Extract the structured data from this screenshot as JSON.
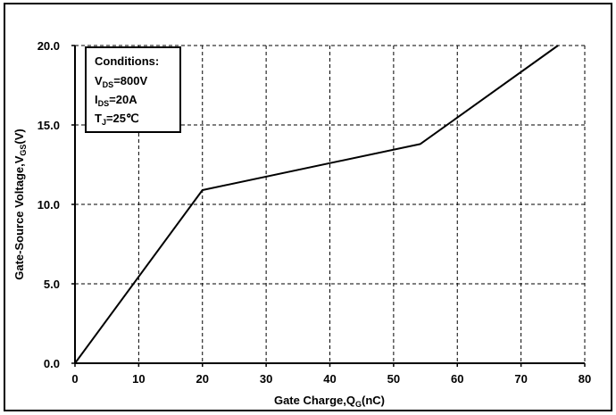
{
  "chart_data": {
    "type": "line",
    "xlabel_main": "Gate Charge,Q",
    "xlabel_sub": "G",
    "xlabel_unit": "(nC)",
    "ylabel_main": "Gate-Source Voltage,V",
    "ylabel_sub": "GS",
    "ylabel_unit": "(V)",
    "xlim": [
      0,
      80
    ],
    "ylim": [
      0,
      20
    ],
    "x_ticks": [
      0,
      10,
      20,
      30,
      40,
      50,
      60,
      70,
      80
    ],
    "x_tick_labels": [
      "0",
      "10",
      "20",
      "30",
      "40",
      "50",
      "60",
      "70",
      "80"
    ],
    "y_ticks": [
      0,
      5,
      10,
      15,
      20
    ],
    "y_tick_labels": [
      "0.0",
      "5.0",
      "10.0",
      "15.0",
      "20.0"
    ],
    "grid": true,
    "series": [
      {
        "x": [
          0,
          20,
          54.2,
          75.8
        ],
        "y": [
          0,
          10.9,
          13.8,
          20.0
        ],
        "color": "#000000"
      }
    ],
    "conditions": {
      "title": "Conditions:",
      "lines": [
        {
          "main": "V",
          "sub": "DS",
          "rest": "=800V"
        },
        {
          "main": "I",
          "sub": "DS",
          "rest": "=20A"
        },
        {
          "main": "T",
          "sub": "J",
          "rest": "=25℃"
        }
      ]
    }
  }
}
